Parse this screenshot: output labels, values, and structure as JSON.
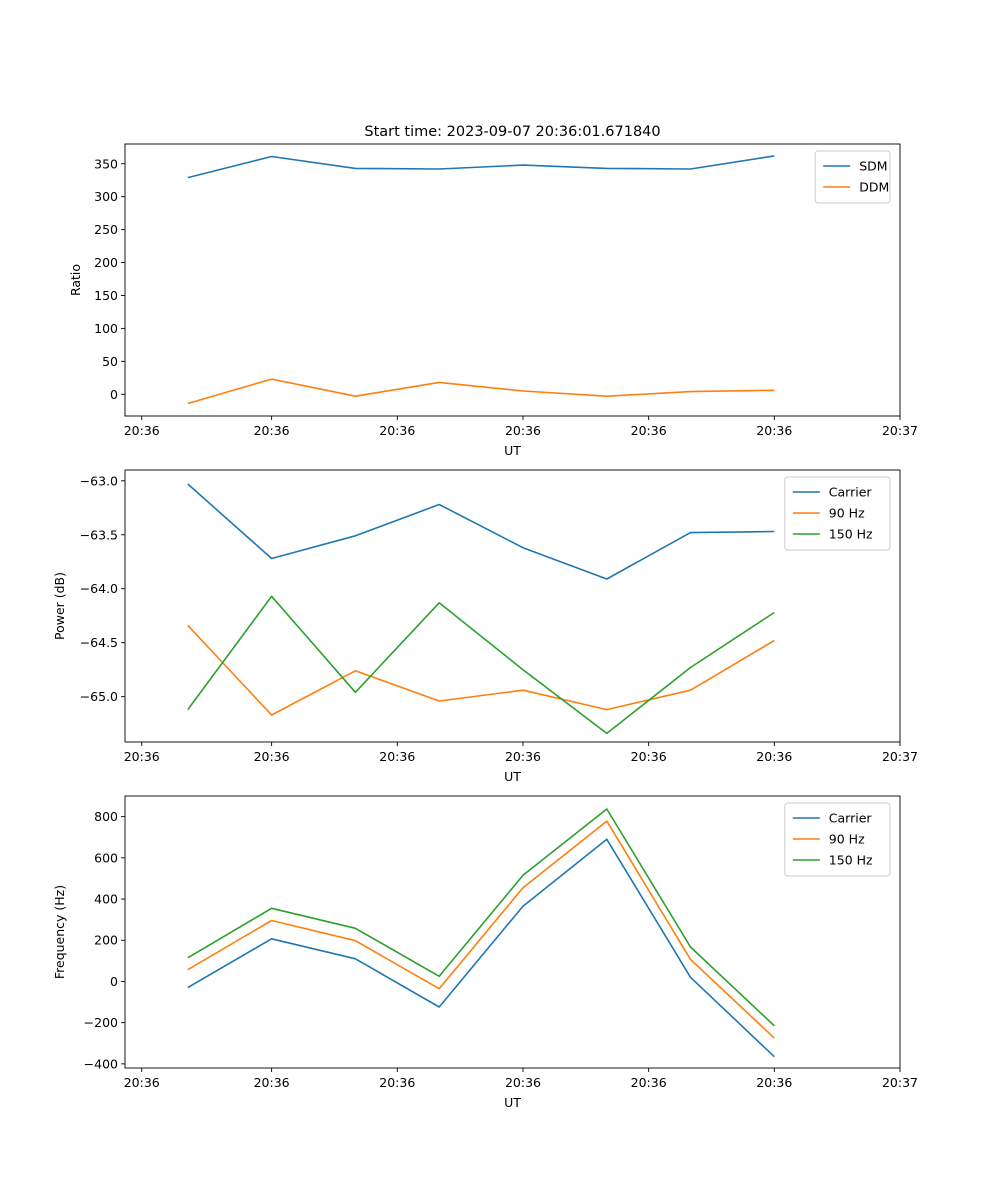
{
  "chart_data": [
    {
      "type": "line",
      "title": "Start time: 2023-09-07 20:36:01.671840",
      "xlabel": "UT",
      "ylabel": "Ratio",
      "xlim": [
        0,
        9.25
      ],
      "ylim": [
        -33,
        380
      ],
      "x": [
        0.75,
        1.75,
        2.75,
        3.75,
        4.75,
        5.75,
        6.75,
        7.75
      ],
      "xticks": [
        0.2,
        1.75,
        3.25,
        4.75,
        6.25,
        7.75,
        9.25
      ],
      "xtick_labels": [
        "20:36",
        "20:36",
        "20:36",
        "20:36",
        "20:36",
        "20:36",
        "20:37"
      ],
      "yticks": [
        0,
        50,
        100,
        150,
        200,
        250,
        300,
        350
      ],
      "ytick_labels": [
        "0",
        "50",
        "100",
        "150",
        "200",
        "250",
        "300",
        "350"
      ],
      "legend": "upper right",
      "series": [
        {
          "name": "SDM",
          "color": "#1f77b4",
          "values": [
            329,
            361,
            343,
            342,
            348,
            343,
            342,
            362
          ]
        },
        {
          "name": "DDM",
          "color": "#ff7f0e",
          "values": [
            -14,
            23,
            -3,
            18,
            5,
            -3,
            4,
            6
          ]
        }
      ]
    },
    {
      "type": "line",
      "title": "",
      "xlabel": "UT",
      "ylabel": "Power (dB)",
      "xlim": [
        0,
        9.25
      ],
      "ylim": [
        -65.42,
        -62.9
      ],
      "x": [
        0.75,
        1.75,
        2.75,
        3.75,
        4.75,
        5.75,
        6.75,
        7.75
      ],
      "xticks": [
        0.2,
        1.75,
        3.25,
        4.75,
        6.25,
        7.75,
        9.25
      ],
      "xtick_labels": [
        "20:36",
        "20:36",
        "20:36",
        "20:36",
        "20:36",
        "20:36",
        "20:37"
      ],
      "yticks": [
        -65.0,
        -64.5,
        -64.0,
        -63.5,
        -63.0
      ],
      "ytick_labels": [
        "−65.0",
        "−64.5",
        "−64.0",
        "−63.5",
        "−63.0"
      ],
      "legend": "upper right",
      "series": [
        {
          "name": "Carrier",
          "color": "#1f77b4",
          "values": [
            -63.03,
            -63.72,
            -63.51,
            -63.22,
            -63.62,
            -63.91,
            -63.48,
            -63.47
          ]
        },
        {
          "name": "90 Hz",
          "color": "#ff7f0e",
          "values": [
            -64.34,
            -65.17,
            -64.76,
            -65.04,
            -64.94,
            -65.12,
            -64.94,
            -64.48
          ]
        },
        {
          "name": "150 Hz",
          "color": "#2ca02c",
          "values": [
            -65.12,
            -64.07,
            -64.96,
            -64.13,
            -64.75,
            -65.34,
            -64.73,
            -64.22
          ]
        }
      ]
    },
    {
      "type": "line",
      "title": "",
      "xlabel": "UT",
      "ylabel": "Frequency (Hz)",
      "xlim": [
        0,
        9.25
      ],
      "ylim": [
        -420,
        900
      ],
      "x": [
        0.75,
        1.75,
        2.75,
        3.75,
        4.75,
        5.75,
        6.75,
        7.75
      ],
      "xticks": [
        0.2,
        1.75,
        3.25,
        4.75,
        6.25,
        7.75,
        9.25
      ],
      "xtick_labels": [
        "20:36",
        "20:36",
        "20:36",
        "20:36",
        "20:36",
        "20:36",
        "20:37"
      ],
      "yticks": [
        -400,
        -200,
        0,
        200,
        400,
        600,
        800
      ],
      "ytick_labels": [
        "−400",
        "−200",
        "0",
        "200",
        "400",
        "600",
        "800"
      ],
      "legend": "upper right",
      "series": [
        {
          "name": "Carrier",
          "color": "#1f77b4",
          "values": [
            -30,
            207,
            110,
            -124,
            365,
            690,
            20,
            -365
          ]
        },
        {
          "name": "90 Hz",
          "color": "#ff7f0e",
          "values": [
            57,
            296,
            198,
            -35,
            455,
            778,
            107,
            -275
          ]
        },
        {
          "name": "150 Hz",
          "color": "#2ca02c",
          "values": [
            115,
            355,
            258,
            25,
            515,
            837,
            167,
            -215
          ]
        }
      ]
    }
  ]
}
